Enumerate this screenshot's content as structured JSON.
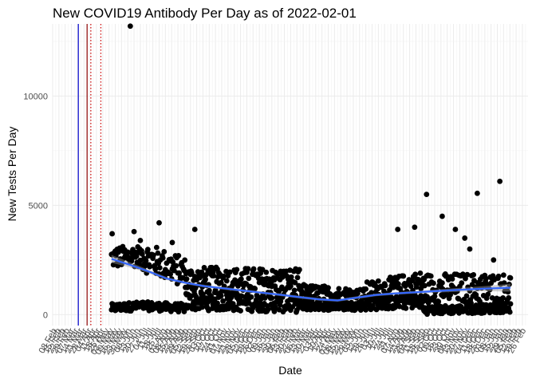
{
  "chart_data": {
    "type": "scatter",
    "title": "New COVID19 Antibody Per Day as of 2022-02-01",
    "xlabel": "Date",
    "ylabel": "New Tests Per Day",
    "x_is_date": true,
    "xlim": [
      "2020-02-01",
      "2022-03-01"
    ],
    "ylim": [
      -500,
      13300
    ],
    "yticks": [
      0,
      5000,
      10000
    ],
    "grid": true,
    "legend": "none",
    "colors": {
      "points": "#000000",
      "smooth": "#3366ff",
      "smooth_band": "#999999",
      "blue_line": "#0000cc",
      "red_line": "#8b0000",
      "red_dotted": "#cc0000",
      "grid_major": "#ebebeb",
      "grid_minor": "#f2f2f2"
    },
    "reference_lines": [
      {
        "date": "2020-03-13",
        "color": "blue_line",
        "style": "solid"
      },
      {
        "date": "2020-03-27",
        "color": "red_line",
        "style": "solid"
      },
      {
        "date": "2020-04-02",
        "color": "red_dotted",
        "style": "dotted"
      },
      {
        "date": "2020-04-18",
        "color": "red_dotted",
        "style": "dotted"
      }
    ],
    "smooth": {
      "x": [
        "2020-05-05",
        "2020-06-01",
        "2020-07-01",
        "2020-08-01",
        "2020-09-01",
        "2020-10-01",
        "2020-11-01",
        "2020-12-01",
        "2021-01-01",
        "2021-02-01",
        "2021-03-01",
        "2021-04-01",
        "2021-05-01",
        "2021-06-01",
        "2021-07-01",
        "2021-08-01",
        "2021-09-01",
        "2021-10-01",
        "2021-11-01",
        "2021-12-01",
        "2022-01-01",
        "2022-02-01"
      ],
      "y": [
        2550,
        2300,
        2000,
        1650,
        1450,
        1300,
        1200,
        1100,
        1000,
        900,
        800,
        700,
        650,
        780,
        900,
        970,
        1020,
        1070,
        1120,
        1160,
        1200,
        1230
      ],
      "band": [
        180,
        120,
        80,
        70,
        60,
        60,
        60,
        60,
        60,
        60,
        60,
        60,
        60,
        60,
        60,
        60,
        60,
        70,
        80,
        100,
        130,
        180
      ]
    },
    "clusters": [
      {
        "start": "2020-05-05",
        "end": "2020-06-20",
        "levels": [
          {
            "y_start": 2600,
            "y_end": 2700,
            "spread": 500
          },
          {
            "y_start": 300,
            "y_end": 400,
            "spread": 200
          }
        ]
      },
      {
        "start": "2020-06-20",
        "end": "2020-09-01",
        "levels": [
          {
            "y_start": 2700,
            "y_end": 1900,
            "spread": 700
          },
          {
            "y_start": 400,
            "y_end": 300,
            "spread": 200
          }
        ]
      },
      {
        "start": "2020-09-01",
        "end": "2021-03-01",
        "levels": [
          {
            "y_start": 1600,
            "y_end": 1500,
            "spread": 600
          },
          {
            "y_start": 600,
            "y_end": 500,
            "spread": 400
          }
        ]
      },
      {
        "start": "2021-03-01",
        "end": "2021-06-15",
        "levels": [
          {
            "y_start": 1000,
            "y_end": 800,
            "spread": 400
          },
          {
            "y_start": 400,
            "y_end": 400,
            "spread": 200
          }
        ]
      },
      {
        "start": "2021-06-15",
        "end": "2021-09-15",
        "levels": [
          {
            "y_start": 1000,
            "y_end": 1500,
            "spread": 500
          },
          {
            "y_start": 500,
            "y_end": 600,
            "spread": 300
          }
        ]
      },
      {
        "start": "2021-09-15",
        "end": "2022-02-01",
        "levels": [
          {
            "y_start": 1200,
            "y_end": 1200,
            "spread": 700
          },
          {
            "y_start": 200,
            "y_end": 300,
            "spread": 200
          }
        ]
      }
    ],
    "outliers": [
      {
        "x": "2020-06-04",
        "y": 13200
      },
      {
        "x": "2020-05-06",
        "y": 3700
      },
      {
        "x": "2020-06-10",
        "y": 3800
      },
      {
        "x": "2020-07-20",
        "y": 4200
      },
      {
        "x": "2020-08-10",
        "y": 3300
      },
      {
        "x": "2020-09-15",
        "y": 3900
      },
      {
        "x": "2021-08-05",
        "y": 3900
      },
      {
        "x": "2021-09-01",
        "y": 4000
      },
      {
        "x": "2021-09-20",
        "y": 5500
      },
      {
        "x": "2021-10-15",
        "y": 4500
      },
      {
        "x": "2021-11-05",
        "y": 3900
      },
      {
        "x": "2021-11-20",
        "y": 3500
      },
      {
        "x": "2021-12-10",
        "y": 5550
      },
      {
        "x": "2021-11-28",
        "y": 3000
      },
      {
        "x": "2022-01-15",
        "y": 6100
      },
      {
        "x": "2022-01-05",
        "y": 2500
      }
    ]
  }
}
